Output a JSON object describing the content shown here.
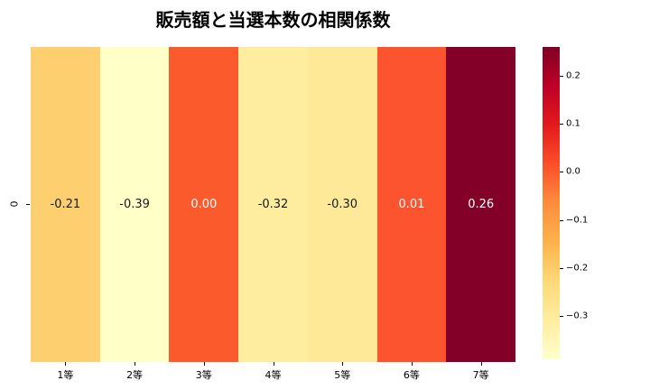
{
  "chart_data": {
    "type": "heatmap",
    "title": "販売額と当選本数の相関係数",
    "x_categories": [
      "1等",
      "2等",
      "3等",
      "4等",
      "5等",
      "6等",
      "7等"
    ],
    "y_categories": [
      "0"
    ],
    "values": [
      [
        -0.21,
        -0.39,
        0.0,
        -0.32,
        -0.3,
        0.01,
        0.26
      ]
    ],
    "colormap": "YlOrRd",
    "vmin": -0.39,
    "vmax": 0.26,
    "annotations": true,
    "grid": false,
    "colorbar_position": "right",
    "colorbar_tick_values": [
      0.2,
      0.1,
      0.0,
      -0.1,
      -0.2,
      -0.3
    ]
  },
  "cells": [
    {
      "label": "-0.21",
      "color": "#fdcf6e",
      "text_color": "#1a1a1a"
    },
    {
      "label": "-0.39",
      "color": "#ffffc8",
      "text_color": "#1a1a1a"
    },
    {
      "label": "0.00",
      "color": "#fb5a2d",
      "text_color": "#ffffff"
    },
    {
      "label": "-0.32",
      "color": "#feed9f",
      "text_color": "#1a1a1a"
    },
    {
      "label": "-0.30",
      "color": "#fee998",
      "text_color": "#1a1a1a"
    },
    {
      "label": "0.01",
      "color": "#fb542f",
      "text_color": "#ffffff"
    },
    {
      "label": "0.26",
      "color": "#830028",
      "text_color": "#ffffff"
    }
  ],
  "x_axis": {
    "labels": [
      "1等",
      "2等",
      "3等",
      "4等",
      "5等",
      "6等",
      "7等"
    ]
  },
  "y_axis": {
    "labels": [
      "0"
    ]
  },
  "colorbar": {
    "tick_labels": [
      "0.2",
      "0.1",
      "0.0",
      "−0.1",
      "−0.2",
      "−0.3"
    ],
    "tick_positions_pct": [
      9.2,
      24.6,
      40.0,
      55.4,
      70.8,
      86.2
    ]
  },
  "colors": {
    "background": "#ffffff",
    "title_text": "#000000",
    "tick_text": "#000000",
    "colorbar_gradient": [
      "#800026",
      "#bd0026",
      "#e31a1c",
      "#fc4e2a",
      "#fd8d3c",
      "#feb24c",
      "#fed976",
      "#ffeda0",
      "#ffffcc"
    ]
  }
}
